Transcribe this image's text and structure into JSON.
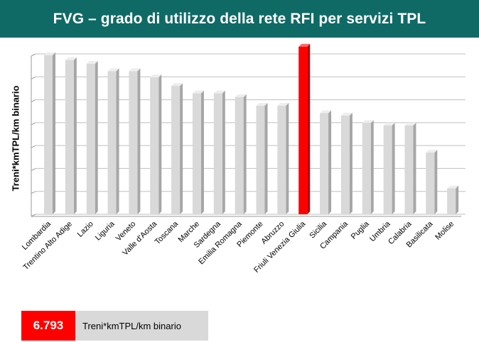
{
  "title": "FVG – grado di utilizzo della rete RFI per servizi TPL",
  "chart_data": {
    "type": "bar",
    "title": "FVG – grado di utilizzo della rete RFI per servizi TPL",
    "xlabel": "",
    "ylabel": "Treni*kmTPL/km binario",
    "ylim": [
      0,
      6.5
    ],
    "grid": true,
    "categories": [
      "Lombardia",
      "Trentino Alto Adige",
      "Lazio",
      "Liguria",
      "Veneto",
      "Valle d'Aosta",
      "Toscana",
      "Marche",
      "Sardegna",
      "Emilia Romagna",
      "Piemonte",
      "Abruzzo",
      "Friuli Venezia Giulia",
      "Sicilia",
      "Campania",
      "Puglia",
      "Umbria",
      "Calabria",
      "Basilicata",
      "Molise"
    ],
    "values": [
      6.45,
      6.25,
      6.1,
      5.8,
      5.8,
      5.55,
      5.2,
      4.9,
      4.9,
      4.75,
      4.4,
      4.4,
      6.793,
      4.1,
      4.0,
      3.7,
      3.6,
      3.6,
      2.5,
      1.05
    ],
    "highlight": "Friuli Venezia Giulia",
    "colors": {
      "bar": "#d9d9d9",
      "highlight": "#ff0000",
      "header": "#0f6a66",
      "grid": "#bfbfbf"
    }
  },
  "legend": {
    "value": "6.793",
    "label": "Treni*kmTPL/km binario"
  }
}
